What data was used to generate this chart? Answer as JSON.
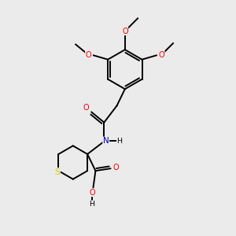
{
  "bg_color": "#ebebeb",
  "bond_color": "#000000",
  "atom_colors": {
    "O": "#ff0000",
    "N": "#0000cc",
    "S": "#cccc00",
    "C": "#000000",
    "H": "#000000"
  },
  "lw": 1.4,
  "ring_r": 0.85,
  "thiane_r": 0.72,
  "scale": 1.0
}
